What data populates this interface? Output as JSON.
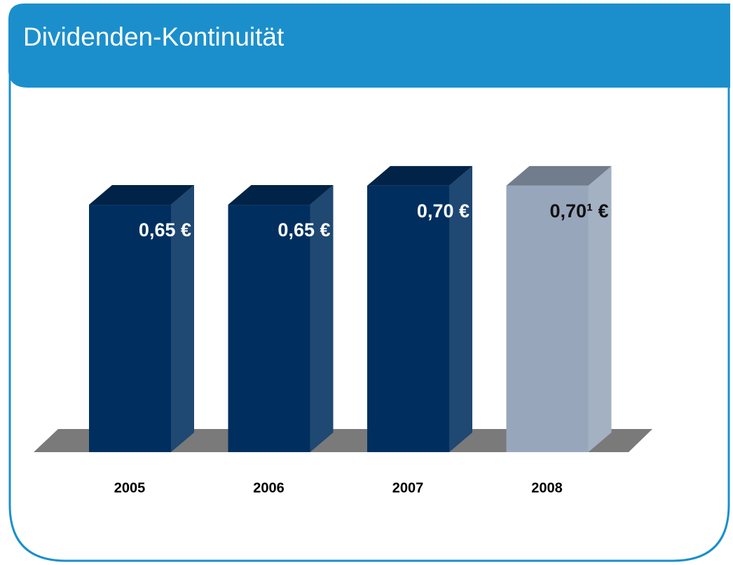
{
  "chart_data": {
    "type": "bar3d",
    "title": "Dividenden-Kontinuität",
    "categories": [
      "2005",
      "2006",
      "2007",
      "2008"
    ],
    "values": [
      0.65,
      0.65,
      0.7,
      0.7
    ],
    "value_labels": [
      "0,65 €",
      "0,65 €",
      "0,70 €",
      "0,70¹ €"
    ],
    "colors": [
      "#002f5f",
      "#002f5f",
      "#002f5f",
      "#97a6bb"
    ],
    "value_label_colors": [
      "#ffffff",
      "#ffffff",
      "#ffffff",
      "#111111"
    ]
  }
}
